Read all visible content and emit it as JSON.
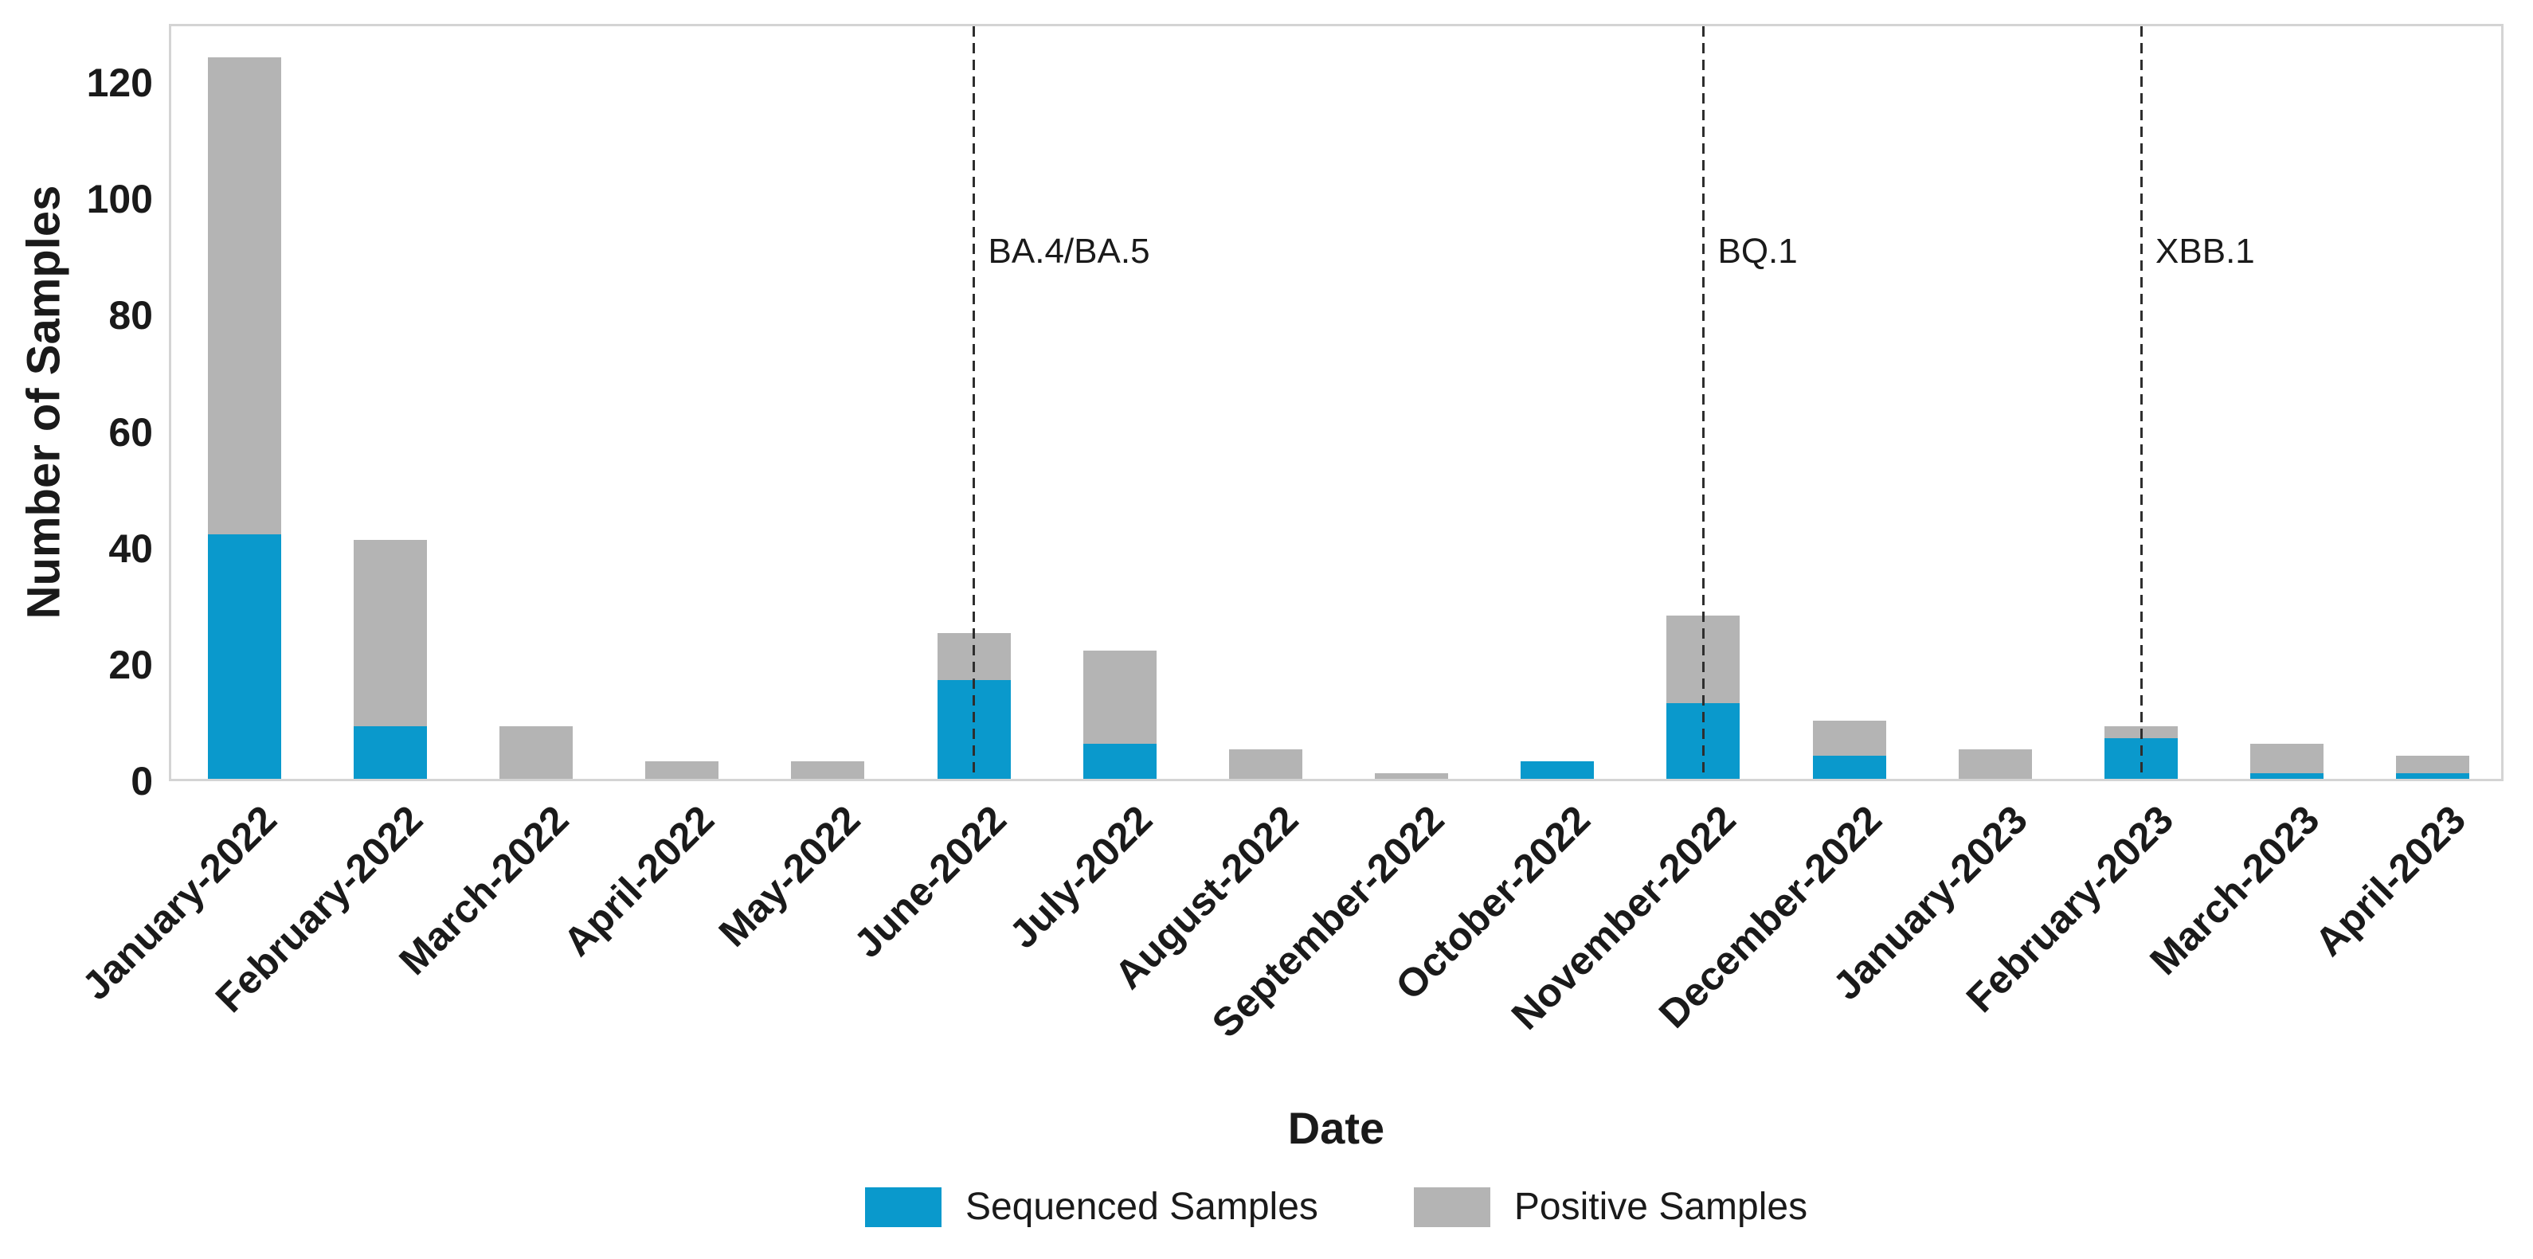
{
  "figure": {
    "background": "#FFFFFF",
    "axes_box_color": "#D4D4D4",
    "text_color": "#1A1A1A"
  },
  "chart_data": {
    "type": "bar",
    "stacked": true,
    "title": "",
    "xlabel": "Date",
    "ylabel": "Number of Samples",
    "categories": [
      "January-2022",
      "February-2022",
      "March-2022",
      "April-2022",
      "May-2022",
      "June-2022",
      "July-2022",
      "August-2022",
      "September-2022",
      "October-2022",
      "November-2022",
      "December-2022",
      "January-2023",
      "February-2023",
      "March-2023",
      "April-2023"
    ],
    "series": [
      {
        "name": "Sequenced Samples",
        "color": "#0A99CC",
        "values": [
          42,
          9,
          0,
          0,
          0,
          17,
          6,
          0,
          0,
          3,
          13,
          4,
          0,
          7,
          1,
          1
        ]
      },
      {
        "name": "Positive Samples",
        "color": "#B4B4B4",
        "values": [
          82,
          32,
          9,
          3,
          3,
          8,
          16,
          5,
          1,
          0,
          15,
          6,
          5,
          2,
          5,
          3
        ]
      }
    ],
    "stack_totals": [
      124,
      41,
      9,
      3,
      3,
      25,
      22,
      5,
      1,
      3,
      28,
      10,
      5,
      9,
      6,
      4
    ],
    "yticks": [
      0,
      20,
      40,
      60,
      80,
      100,
      120
    ],
    "ylim": [
      0,
      130
    ],
    "grid": false,
    "legend_position": "bottom-center",
    "annotations": [
      {
        "label": "BA.4/BA.5",
        "category": "June-2022",
        "category_index": 5,
        "line_style": "dashed",
        "line_color": "#2E2E2E"
      },
      {
        "label": "BQ.1",
        "category": "November-2022",
        "category_index": 10,
        "line_style": "dashed",
        "line_color": "#2E2E2E"
      },
      {
        "label": "XBB.1",
        "category": "February-2023",
        "category_index": 13,
        "line_style": "dashed",
        "line_color": "#2E2E2E"
      }
    ]
  }
}
